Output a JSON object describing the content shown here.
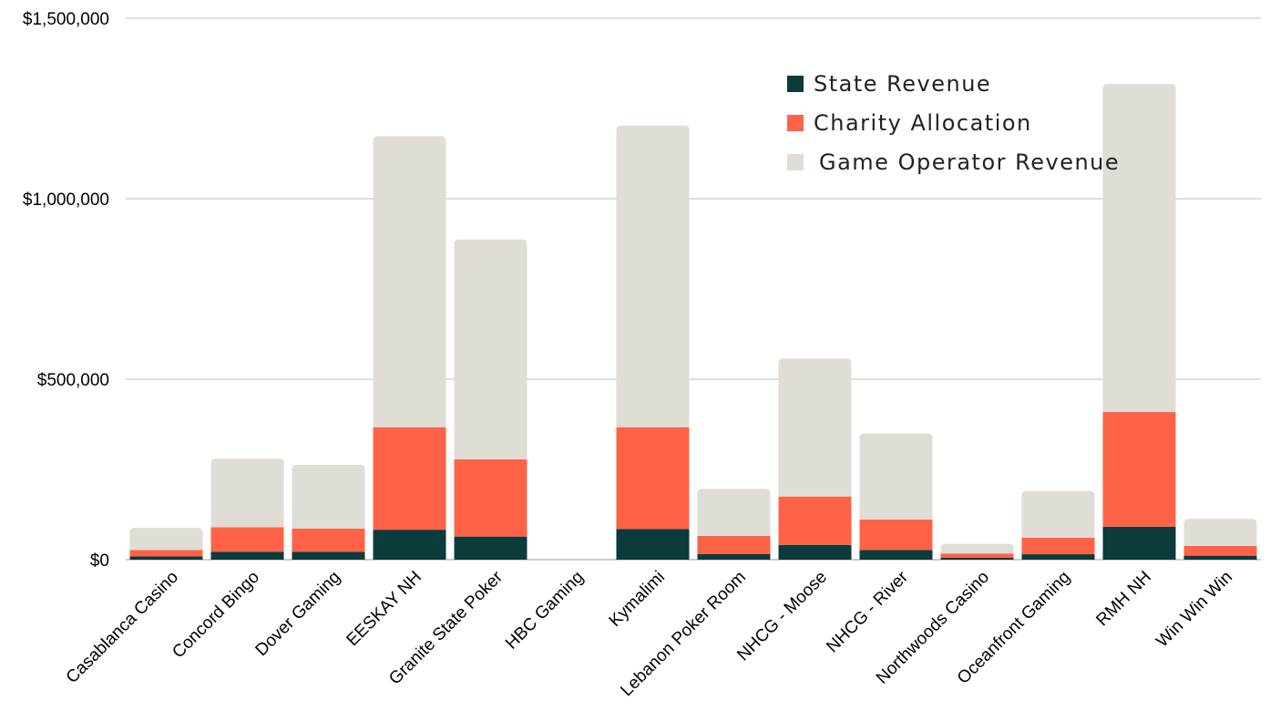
{
  "chart_data": {
    "type": "bar",
    "stacked": true,
    "title": "",
    "xlabel": "",
    "ylabel": "",
    "ylim": [
      0,
      1500000
    ],
    "yticks": [
      0,
      500000,
      1000000,
      1500000
    ],
    "ytick_labels": [
      "$0",
      "$500,000",
      "$1,000,000",
      "$1,500,000"
    ],
    "grid": true,
    "legend_position": "top-right",
    "categories": [
      "Casablanca Casino",
      "Concord Bingo",
      "Dover Gaming",
      "EESKAY NH",
      "Granite State Poker",
      "HBC Gaming",
      "Kymalimi",
      "Lebanon Poker Room",
      "NHCG - Moose",
      "NHCG - River",
      "Northwoods Casino",
      "Oceanfront Gaming",
      "RMH NH",
      "Win Win Win"
    ],
    "series": [
      {
        "name": "State Revenue",
        "color": "#0c3b3c",
        "values": [
          9000,
          22000,
          22000,
          83000,
          64000,
          0,
          85000,
          16000,
          41000,
          27000,
          5000,
          15000,
          91000,
          11000
        ]
      },
      {
        "name": "Charity Allocation",
        "color": "#ff6347",
        "values": [
          18000,
          68000,
          64000,
          284000,
          214000,
          0,
          282000,
          50000,
          134000,
          84000,
          12000,
          46000,
          318000,
          27000
        ]
      },
      {
        "name": "Game Operator Revenue",
        "color": "#e0ddd6",
        "values": [
          61000,
          190000,
          177000,
          806000,
          609000,
          0,
          836000,
          130000,
          382000,
          239000,
          27000,
          129000,
          909000,
          75000
        ]
      }
    ]
  }
}
